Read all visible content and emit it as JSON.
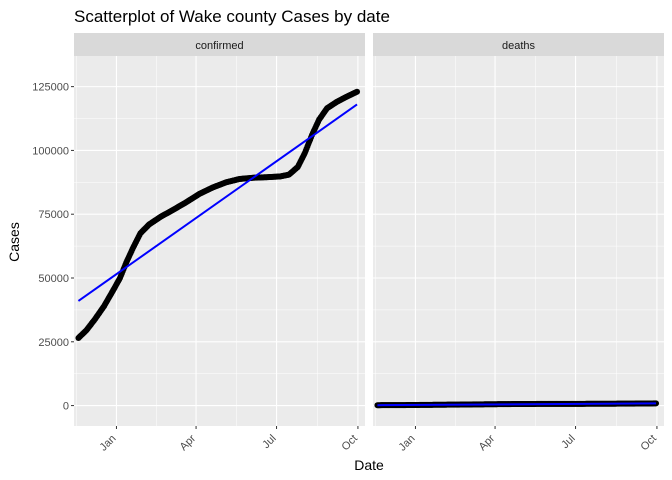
{
  "chart_data": {
    "type": "scatter",
    "title": "Scatterplot of  Wake county Cases by date",
    "xlabel": "Date",
    "ylabel": "Cases",
    "ylim": [
      -8000,
      137000
    ],
    "xlim": [
      "2020-11-14",
      "2021-10-09"
    ],
    "x_ticks": [
      {
        "label": "Jan",
        "date": "2021-01-01"
      },
      {
        "label": "Apr",
        "date": "2021-04-01"
      },
      {
        "label": "Jul",
        "date": "2021-07-01"
      },
      {
        "label": "Oct",
        "date": "2021-10-01"
      }
    ],
    "y_ticks": [
      {
        "label": "0",
        "value": 0
      },
      {
        "label": "25000",
        "value": 25000
      },
      {
        "label": "50000",
        "value": 50000
      },
      {
        "label": "75000",
        "value": 75000
      },
      {
        "label": "100000",
        "value": 100000
      },
      {
        "label": "125000",
        "value": 125000
      }
    ],
    "grid": true,
    "facets": [
      {
        "label": "confirmed",
        "points": [
          [
            "2020-11-19",
            26500
          ],
          [
            "2020-11-28",
            29500
          ],
          [
            "2020-12-08",
            34000
          ],
          [
            "2020-12-18",
            39000
          ],
          [
            "2020-12-28",
            45000
          ],
          [
            "2021-01-05",
            50000
          ],
          [
            "2021-01-12",
            56000
          ],
          [
            "2021-01-20",
            62000
          ],
          [
            "2021-01-28",
            67500
          ],
          [
            "2021-02-07",
            71000
          ],
          [
            "2021-02-20",
            74000
          ],
          [
            "2021-03-05",
            76500
          ],
          [
            "2021-03-20",
            79500
          ],
          [
            "2021-04-05",
            83000
          ],
          [
            "2021-04-20",
            85500
          ],
          [
            "2021-05-05",
            87500
          ],
          [
            "2021-05-20",
            88800
          ],
          [
            "2021-06-05",
            89300
          ],
          [
            "2021-06-20",
            89500
          ],
          [
            "2021-07-05",
            89800
          ],
          [
            "2021-07-15",
            90500
          ],
          [
            "2021-07-25",
            93500
          ],
          [
            "2021-08-02",
            99000
          ],
          [
            "2021-08-10",
            106000
          ],
          [
            "2021-08-18",
            112000
          ],
          [
            "2021-08-27",
            116500
          ],
          [
            "2021-09-07",
            119000
          ],
          [
            "2021-09-18",
            121000
          ],
          [
            "2021-09-30",
            123000
          ]
        ],
        "trend": [
          [
            "2020-11-19",
            41000
          ],
          [
            "2021-09-30",
            118000
          ]
        ]
      },
      {
        "label": "deaths",
        "points": [
          [
            "2020-11-19",
            150
          ],
          [
            "2020-12-20",
            200
          ],
          [
            "2021-01-20",
            300
          ],
          [
            "2021-02-20",
            400
          ],
          [
            "2021-03-20",
            500
          ],
          [
            "2021-04-20",
            600
          ],
          [
            "2021-05-20",
            650
          ],
          [
            "2021-06-20",
            680
          ],
          [
            "2021-07-20",
            700
          ],
          [
            "2021-08-20",
            750
          ],
          [
            "2021-09-30",
            850
          ]
        ],
        "trend": [
          [
            "2020-11-19",
            150
          ],
          [
            "2021-09-30",
            850
          ]
        ]
      }
    ],
    "colors": {
      "points": "#000000",
      "trend": "#0000ff",
      "panel": "#ebebeb",
      "grid": "#ffffff",
      "strip": "#d9d9d9"
    }
  }
}
